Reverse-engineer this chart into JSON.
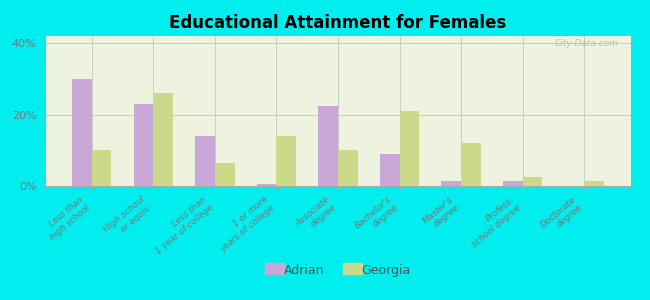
{
  "title": "Educational Attainment for Females",
  "categories": [
    "Less than\nhigh school",
    "High school\nor equiv.",
    "Less than\n1 year of college",
    "1 or more\nyears of college",
    "Associate\ndegree",
    "Bachelor's\ndegree",
    "Master's\ndegree",
    "Profess.\nschool degree",
    "Doctorate\ndegree"
  ],
  "adrian_values": [
    30.0,
    23.0,
    14.0,
    0.5,
    22.5,
    9.0,
    1.5,
    1.5,
    0.0
  ],
  "georgia_values": [
    10.0,
    26.0,
    6.5,
    14.0,
    10.0,
    21.0,
    12.0,
    2.5,
    1.5
  ],
  "adrian_color": "#c9a8d8",
  "georgia_color": "#cdd98a",
  "ylim": [
    0,
    42
  ],
  "yticks": [
    0,
    20,
    40
  ],
  "ytick_labels": [
    "0%",
    "20%",
    "40%"
  ],
  "background_color": "#00eeee",
  "plot_bg_color": "#eef3e0",
  "watermark": "City-Data.com",
  "legend_labels": [
    "Adrian",
    "Georgia"
  ],
  "bar_width": 0.32
}
